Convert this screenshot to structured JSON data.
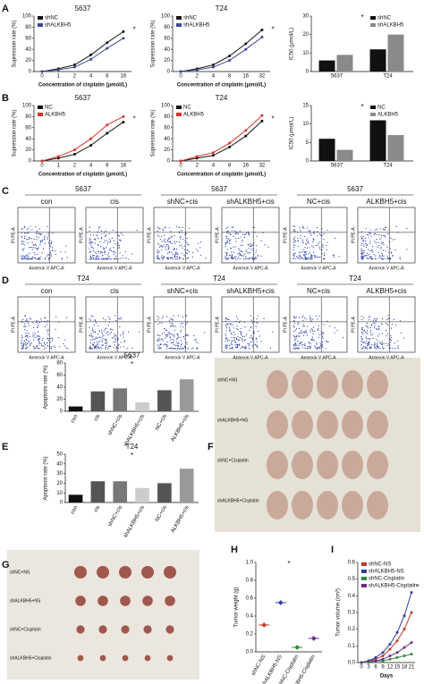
{
  "chart_data": [
    {
      "type": "line",
      "title": "5637",
      "x_label": "Concentration of cisplatin (μmol/L)",
      "y_label": "Supression rate (%)",
      "categories": [
        0,
        1,
        2,
        4,
        8,
        16
      ],
      "series": [
        {
          "name": "shNC",
          "color": "#111111",
          "values": [
            0,
            5,
            12,
            30,
            52,
            72
          ]
        },
        {
          "name": "shALKBH5",
          "color": "#3a4a9a",
          "values": [
            0,
            3,
            8,
            22,
            42,
            60
          ]
        }
      ],
      "ylim": [
        0,
        100
      ],
      "yticks": [
        0,
        20,
        40,
        60,
        80,
        100
      ],
      "sig": "*"
    },
    {
      "type": "line",
      "title": "T24",
      "x_label": "Concentration of cisplatin (μmol/L)",
      "y_label": "Supression rate (%)",
      "categories": [
        0,
        2,
        4,
        8,
        16,
        32
      ],
      "series": [
        {
          "name": "shNC",
          "color": "#111111",
          "values": [
            0,
            5,
            12,
            28,
            50,
            75
          ]
        },
        {
          "name": "shALKBH5",
          "color": "#3a4a9a",
          "values": [
            0,
            3,
            8,
            20,
            40,
            62
          ]
        }
      ],
      "ylim": [
        0,
        100
      ],
      "yticks": [
        0,
        20,
        40,
        60,
        80,
        100
      ],
      "sig": "*"
    },
    {
      "type": "bar",
      "y_label": "IC50 (μmol/L)",
      "categories": [
        "5637",
        "T24"
      ],
      "series": [
        {
          "name": "shNC",
          "color": "#111111",
          "values": [
            6,
            12
          ]
        },
        {
          "name": "shALKBH5",
          "color": "#8a8a8a",
          "values": [
            9,
            20
          ]
        }
      ],
      "ylim": [
        0,
        30
      ],
      "yticks": [
        0,
        10,
        20,
        30
      ],
      "sig": "*"
    },
    {
      "type": "line",
      "title": "5637",
      "x_label": "Concentration of cisplatin (μmol/L)",
      "y_label": "Supression rate (%)",
      "categories": [
        0,
        1,
        2,
        4,
        8,
        16
      ],
      "series": [
        {
          "name": "NC",
          "color": "#111111",
          "values": [
            0,
            5,
            12,
            28,
            50,
            70
          ]
        },
        {
          "name": "ALKBH5",
          "color": "#d9342b",
          "values": [
            0,
            8,
            20,
            40,
            65,
            80
          ]
        }
      ],
      "ylim": [
        0,
        100
      ],
      "yticks": [
        0,
        20,
        40,
        60,
        80,
        100
      ],
      "sig": "*"
    },
    {
      "type": "line",
      "title": "T24",
      "x_label": "Concentration of cisplatin (μmol/L)",
      "y_label": "Supression rate (%)",
      "categories": [
        0,
        2,
        4,
        8,
        16,
        32
      ],
      "series": [
        {
          "name": "NC",
          "color": "#111111",
          "values": [
            0,
            5,
            10,
            25,
            45,
            72
          ]
        },
        {
          "name": "ALKBH5",
          "color": "#d9342b",
          "values": [
            0,
            8,
            15,
            32,
            55,
            82
          ]
        }
      ],
      "ylim": [
        0,
        100
      ],
      "yticks": [
        0,
        20,
        40,
        60,
        80,
        100
      ],
      "sig": "*"
    },
    {
      "type": "bar",
      "y_label": "IC50 (μmol/L)",
      "categories": [
        "5637",
        "T24"
      ],
      "series": [
        {
          "name": "NC",
          "color": "#111111",
          "values": [
            6,
            11
          ]
        },
        {
          "name": "ALKBH5",
          "color": "#8a8a8a",
          "values": [
            3,
            7
          ]
        }
      ],
      "ylim": [
        0,
        15
      ],
      "yticks": [
        0,
        5,
        10,
        15
      ],
      "sig": "*"
    },
    {
      "type": "bar",
      "title": "5637",
      "y_label": "Apoptosis rate (%)",
      "categories": [
        "con",
        "cis",
        "shNC+cis",
        "shALKBH5+cis",
        "NC+cis",
        "ALKBH5+cis"
      ],
      "values": [
        8,
        33,
        38,
        15,
        35,
        53
      ],
      "colors": [
        "#111111",
        "#555555",
        "#777777",
        "#cccccc",
        "#555555",
        "#999999"
      ],
      "ylim": [
        0,
        80
      ],
      "yticks": [
        0,
        20,
        40,
        60,
        80
      ],
      "sig": "*"
    },
    {
      "type": "bar",
      "title": "T24",
      "y_label": "Apoptosis rate (%)",
      "categories": [
        "con",
        "cis",
        "shNC+cis",
        "shALKBH5+cis",
        "NC+cis",
        "ALKBH5+cis"
      ],
      "values": [
        8,
        22,
        22,
        15,
        20,
        35
      ],
      "colors": [
        "#111111",
        "#555555",
        "#777777",
        "#cccccc",
        "#555555",
        "#999999"
      ],
      "ylim": [
        0,
        50
      ],
      "yticks": [
        0,
        10,
        20,
        30,
        40,
        50
      ],
      "sig": "*"
    },
    {
      "type": "dot",
      "y_label": "Tumor weight (g)",
      "categories": [
        "shNC-NS",
        "shALKBH5-NS",
        "shNC-Cisplatin",
        "shALKBH5-Cisplatin"
      ],
      "values": [
        0.3,
        0.55,
        0.05,
        0.15
      ],
      "colors": [
        "#c0392b",
        "#2e3f9e",
        "#2e8b3a",
        "#6a2c8a"
      ],
      "ylim": [
        0,
        1
      ],
      "yticks": [
        {
          "value": 0,
          "label": "0.0"
        },
        0.2,
        0.4,
        0.6,
        0.8,
        {
          "value": 1,
          "label": "1.0"
        }
      ],
      "sig": "*"
    },
    {
      "type": "line",
      "x_label": "Days",
      "y_label": "Tumor volume (cm³)",
      "categories": [
        0,
        3,
        6,
        9,
        12,
        15,
        18,
        21
      ],
      "series": [
        {
          "name": "shNC-NS",
          "color": "#c0392b",
          "values": [
            0,
            0.01,
            0.02,
            0.04,
            0.08,
            0.13,
            0.2,
            0.3
          ]
        },
        {
          "name": "shALKBH5-NS",
          "color": "#2e3f9e",
          "values": [
            0,
            0.01,
            0.03,
            0.06,
            0.11,
            0.18,
            0.28,
            0.42
          ]
        },
        {
          "name": "shNC-Cisplatin",
          "color": "#2e8b3a",
          "values": [
            0,
            0,
            0.01,
            0.01,
            0.02,
            0.03,
            0.04,
            0.05
          ]
        },
        {
          "name": "shALKBH5-Cisplatin",
          "color": "#6a2c8a",
          "values": [
            0,
            0.01,
            0.01,
            0.02,
            0.04,
            0.06,
            0.09,
            0.12
          ]
        }
      ],
      "ylim": [
        0,
        0.6
      ],
      "yticks": [
        {
          "value": 0,
          "label": "0.0"
        },
        0.1,
        0.2,
        0.3,
        0.4,
        0.5,
        0.6
      ],
      "sig": "*"
    }
  ],
  "letters": [
    "A",
    "B",
    "C",
    "D",
    "E",
    "F",
    "G",
    "H",
    "I"
  ],
  "flow_rows": [
    {
      "groups": [
        "5637",
        "5637",
        "5637"
      ],
      "plots": [
        "con",
        "cis",
        "shNC+cis",
        "shALKBH5+cis",
        "NC+cis",
        "ALKBH5+cis"
      ]
    },
    {
      "groups": [
        "T24",
        "T24",
        "T24"
      ],
      "plots": [
        "con",
        "cis",
        "shNC+cis",
        "shALKBH5+cis",
        "NC+cis",
        "ALKBH5+cis"
      ]
    }
  ],
  "flow_axes": {
    "y": "PI PE-A",
    "x": "Annexin V APC-A"
  },
  "in_vivo_groups": [
    "shNC+NS",
    "shALKBH5+NS",
    "shNC+Cisplatin",
    "shALKBH5+Cisplatin"
  ]
}
